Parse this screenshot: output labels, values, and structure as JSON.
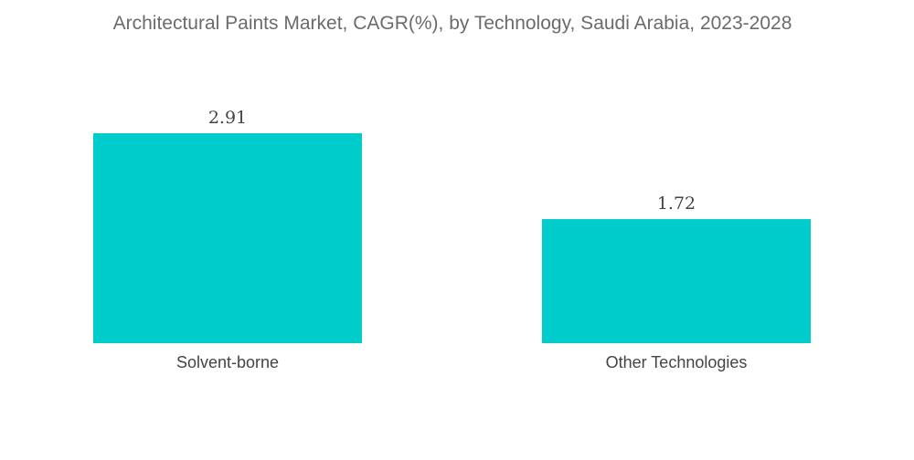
{
  "chart_data": {
    "type": "bar",
    "title": "Architectural Paints Market, CAGR(%), by Technology, Saudi Arabia, 2023-2028",
    "categories": [
      "Solvent-borne",
      "Other Technologies"
    ],
    "series": [
      {
        "values": [
          2.91,
          1.72
        ]
      }
    ],
    "data_labels": [
      "2.91",
      "1.72"
    ],
    "xlabel": "",
    "ylabel": "",
    "ylim": [
      0,
      2.91
    ],
    "grid": false,
    "legend": "none",
    "bar_color": "#00cccc"
  }
}
